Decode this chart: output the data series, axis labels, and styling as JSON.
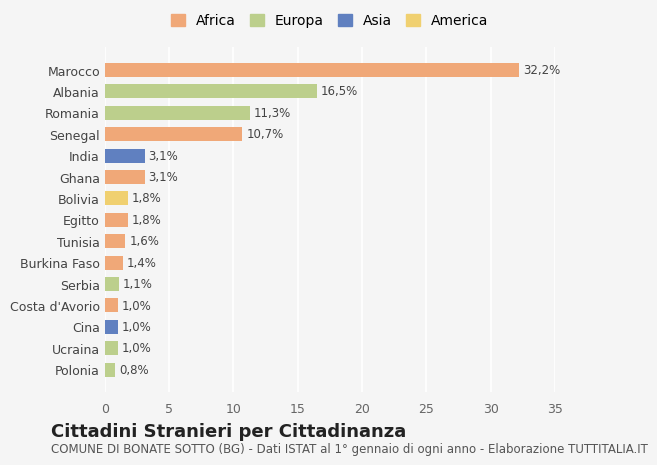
{
  "countries": [
    "Polonia",
    "Ucraina",
    "Cina",
    "Costa d'Avorio",
    "Serbia",
    "Burkina Faso",
    "Tunisia",
    "Egitto",
    "Bolivia",
    "Ghana",
    "India",
    "Senegal",
    "Romania",
    "Albania",
    "Marocco"
  ],
  "values": [
    0.8,
    1.0,
    1.0,
    1.0,
    1.1,
    1.4,
    1.6,
    1.8,
    1.8,
    3.1,
    3.1,
    10.7,
    11.3,
    16.5,
    32.2
  ],
  "labels": [
    "0,8%",
    "1,0%",
    "1,0%",
    "1,0%",
    "1,1%",
    "1,4%",
    "1,6%",
    "1,8%",
    "1,8%",
    "3,1%",
    "3,1%",
    "10,7%",
    "11,3%",
    "16,5%",
    "32,2%"
  ],
  "continents": [
    "Europa",
    "Europa",
    "Asia",
    "Africa",
    "Europa",
    "Africa",
    "Africa",
    "Africa",
    "America",
    "Africa",
    "Asia",
    "Africa",
    "Europa",
    "Europa",
    "Africa"
  ],
  "colors": {
    "Africa": "#F0A878",
    "Europa": "#BCCF8C",
    "Asia": "#6080C0",
    "America": "#F0D070"
  },
  "legend_order": [
    "Africa",
    "Europa",
    "Asia",
    "America"
  ],
  "title": "Cittadini Stranieri per Cittadinanza",
  "subtitle": "COMUNE DI BONATE SOTTO (BG) - Dati ISTAT al 1° gennaio di ogni anno - Elaborazione TUTTITALIA.IT",
  "xlim": [
    0,
    35
  ],
  "xticks": [
    0,
    5,
    10,
    15,
    20,
    25,
    30,
    35
  ],
  "background_color": "#f5f5f5",
  "grid_color": "#ffffff",
  "bar_height": 0.65,
  "title_fontsize": 13,
  "subtitle_fontsize": 8.5,
  "label_fontsize": 8.5,
  "tick_fontsize": 9,
  "legend_fontsize": 10
}
